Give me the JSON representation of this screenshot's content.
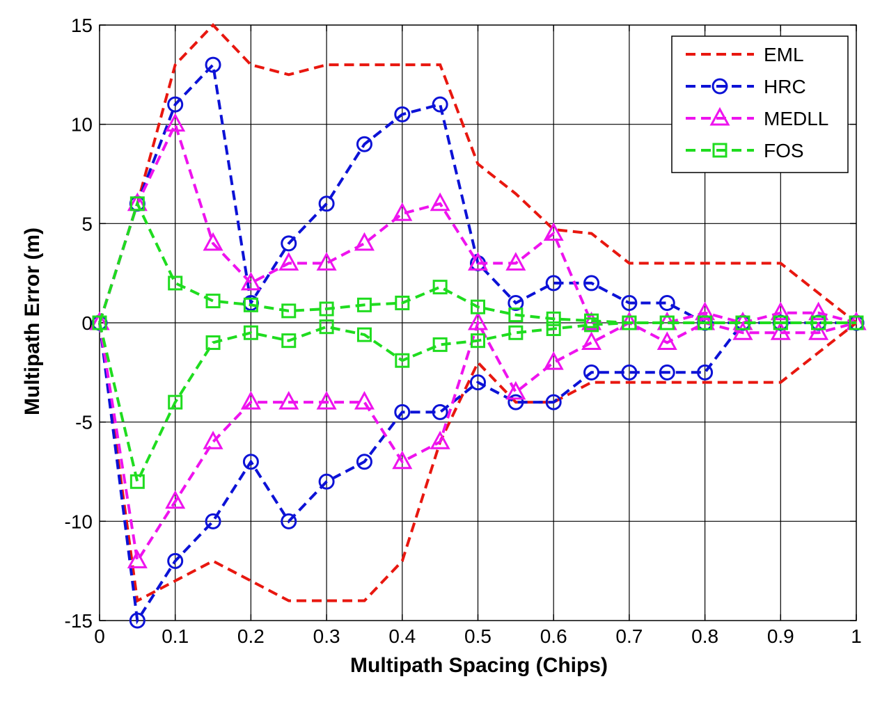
{
  "chart_data": {
    "type": "line",
    "title": "",
    "xlabel": "Multipath Spacing (Chips)",
    "ylabel": "Multipath Error (m)",
    "xlim": [
      0,
      1
    ],
    "ylim": [
      -15,
      15
    ],
    "xticks": [
      0,
      0.1,
      0.2,
      0.3,
      0.4,
      0.5,
      0.6,
      0.7,
      0.8,
      0.9,
      1
    ],
    "xtick_labels": [
      "0",
      "0.1",
      "0.2",
      "0.3",
      "0.4",
      "0.5",
      "0.6",
      "0.7",
      "0.8",
      "0.9",
      "1"
    ],
    "yticks": [
      15,
      10,
      5,
      0,
      -5,
      -10,
      -15
    ],
    "ytick_labels": [
      "15",
      "10",
      "5",
      "0",
      "-5",
      "-10",
      "-15"
    ],
    "grid": true,
    "legend_position": "top-right",
    "series": [
      {
        "name": "EML",
        "color": "#e8170f",
        "marker": "none",
        "x": [
          0,
          0.05,
          0.1,
          0.15,
          0.2,
          0.25,
          0.3,
          0.35,
          0.4,
          0.45,
          0.5,
          0.55,
          0.6,
          0.65,
          0.7,
          0.75,
          0.8,
          0.85,
          0.9,
          0.95,
          1
        ],
        "upper": [
          0,
          6,
          13,
          15,
          13,
          12.5,
          13,
          13,
          13,
          13,
          8,
          6.5,
          4.7,
          4.5,
          3,
          3,
          3,
          3,
          3,
          1.5,
          0
        ],
        "lower": [
          0,
          -14,
          -13,
          -12,
          -13,
          -14,
          -14,
          -14,
          -12,
          -6,
          -2,
          -4,
          -4,
          -3,
          -3,
          -3,
          -3,
          -3,
          -3,
          -1.5,
          0
        ]
      },
      {
        "name": "HRC",
        "color": "#0c12d6",
        "marker": "circle",
        "x": [
          0,
          0.05,
          0.1,
          0.15,
          0.2,
          0.25,
          0.3,
          0.35,
          0.4,
          0.45,
          0.5,
          0.55,
          0.6,
          0.65,
          0.7,
          0.75,
          0.8,
          0.85,
          0.9,
          0.95,
          1
        ],
        "upper": [
          0,
          6,
          11,
          13,
          1,
          4,
          6,
          9,
          10.5,
          11,
          3,
          1,
          2,
          2,
          1,
          1,
          0,
          0,
          0,
          0,
          0
        ],
        "lower": [
          0,
          -15,
          -12,
          -10,
          -7,
          -10,
          -8,
          -7,
          -4.5,
          -4.5,
          -3,
          -4,
          -4,
          -2.5,
          -2.5,
          -2.5,
          -2.5,
          0,
          0,
          0,
          0
        ]
      },
      {
        "name": "MEDLL",
        "color": "#ee13ee",
        "marker": "triangle",
        "x": [
          0,
          0.05,
          0.1,
          0.15,
          0.2,
          0.25,
          0.3,
          0.35,
          0.4,
          0.45,
          0.5,
          0.55,
          0.6,
          0.65,
          0.7,
          0.75,
          0.8,
          0.85,
          0.9,
          0.95,
          1
        ],
        "upper": [
          0,
          6,
          10,
          4,
          2,
          3,
          3,
          4,
          5.5,
          6,
          3,
          3,
          4.5,
          0,
          0,
          0,
          0.5,
          0,
          0.5,
          0.5,
          0
        ],
        "lower": [
          0,
          -12,
          -9,
          -6,
          -4,
          -4,
          -4,
          -4,
          -7,
          -6,
          0,
          -3.5,
          -2,
          -1,
          0,
          -1,
          0,
          -0.5,
          -0.5,
          -0.5,
          0
        ]
      },
      {
        "name": "FOS",
        "color": "#1fdc1f",
        "marker": "square",
        "x": [
          0,
          0.05,
          0.1,
          0.15,
          0.2,
          0.25,
          0.3,
          0.35,
          0.4,
          0.45,
          0.5,
          0.55,
          0.6,
          0.65,
          0.7,
          0.75,
          0.8,
          0.85,
          0.9,
          0.95,
          1
        ],
        "upper": [
          0,
          6,
          2,
          1.1,
          0.9,
          0.6,
          0.7,
          0.9,
          1,
          1.8,
          0.8,
          0.4,
          0.2,
          0.1,
          0,
          0,
          0,
          0,
          0,
          0,
          0
        ],
        "lower": [
          0,
          -8,
          -4,
          -1,
          -0.5,
          -0.9,
          -0.2,
          -0.6,
          -1.9,
          -1.1,
          -0.9,
          -0.5,
          -0.3,
          -0.1,
          0,
          0,
          0,
          0,
          0,
          0,
          0
        ]
      }
    ]
  }
}
